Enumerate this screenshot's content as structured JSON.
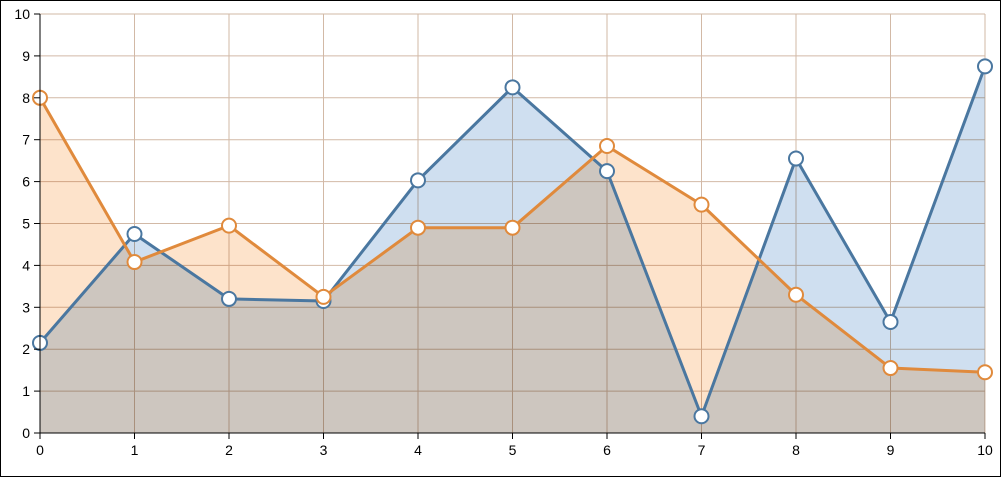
{
  "chart_data": {
    "type": "area",
    "x": [
      0,
      1,
      2,
      3,
      4,
      5,
      6,
      7,
      8,
      9,
      10
    ],
    "xlim": [
      0,
      10
    ],
    "ylim": [
      0,
      10
    ],
    "xticks": [
      "0",
      "1",
      "2",
      "3",
      "4",
      "5",
      "6",
      "7",
      "8",
      "9",
      "10"
    ],
    "yticks": [
      "0",
      "1",
      "2",
      "3",
      "4",
      "5",
      "6",
      "7",
      "8",
      "9",
      "10"
    ],
    "grid": true,
    "legend": "none",
    "series": [
      {
        "values": [
          2.15,
          4.75,
          3.2,
          3.15,
          6.03,
          8.25,
          6.25,
          0.4,
          6.55,
          2.65,
          8.75
        ],
        "line_color": "#4a77a0",
        "fill_color": "#cfdff0"
      },
      {
        "values": [
          8.0,
          4.08,
          4.95,
          3.25,
          4.9,
          4.9,
          6.85,
          5.45,
          3.3,
          1.55,
          1.45
        ],
        "line_color": "#e08a3c",
        "fill_color": "#fde3cb"
      }
    ],
    "overlap_color": "#d9cbbd",
    "marker_fill": "#ffffff"
  }
}
